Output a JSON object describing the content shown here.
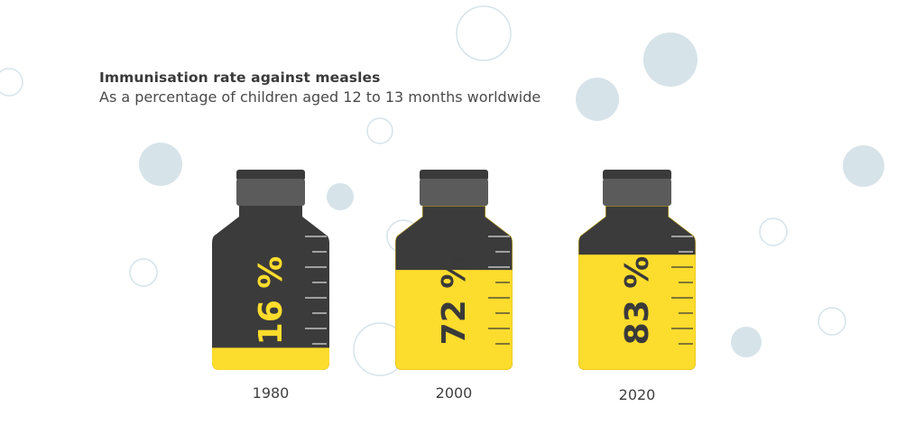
{
  "title": "Immunisation rate against measles",
  "subtitle": "As a percentage of children aged 12 to 13 months worldwide",
  "colors": {
    "bottle_dark": "#3b3b3b",
    "cap": "#5b5b5b",
    "cap_top": "#3a3a3a",
    "fill": "#fcdc2c",
    "fill_outline": "#e0bb18",
    "text_dark": "#3a3a3a",
    "text_light": "#fcdc2c",
    "bubble_fill": "#d6e3e9",
    "bubble_stroke": "#d6e3e9"
  },
  "chart_data": {
    "type": "bar",
    "title": "Immunisation rate against measles",
    "subtitle": "As a percentage of children aged 12 to 13 months worldwide",
    "categories": [
      "1980",
      "2000",
      "2020"
    ],
    "values": [
      16,
      72,
      83
    ],
    "value_labels": [
      "16 %",
      "72 %",
      "83 %"
    ],
    "ylim": [
      0,
      100
    ],
    "xlabel": "",
    "ylabel": "",
    "grid": false,
    "legend": "none"
  }
}
